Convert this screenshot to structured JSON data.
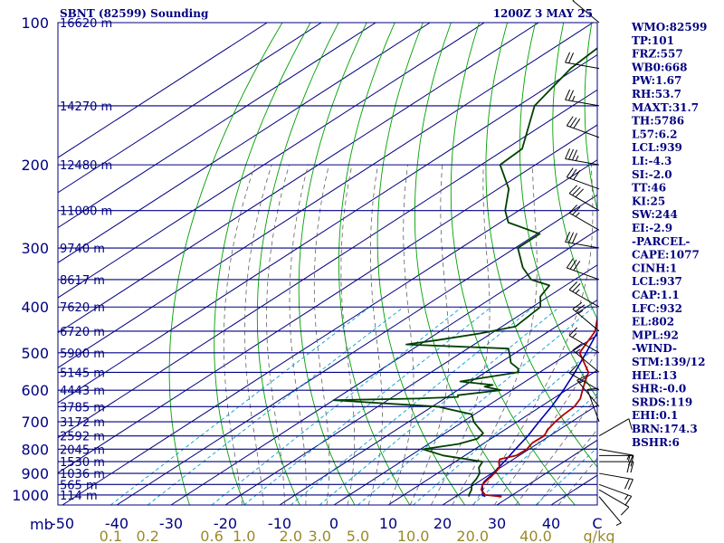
{
  "header": {
    "station": "SBNT (82599) Sounding",
    "time": "1200Z  3 MAY 25"
  },
  "chart_data": {
    "type": "skew-t",
    "title": "SBNT (82599) Sounding",
    "valid_time": "1200Z  3 MAY 25",
    "pressure_ticks": [
      "100",
      "200",
      "300",
      "400",
      "500",
      "600",
      "700",
      "800",
      "900",
      "1000"
    ],
    "pressure_unit": "mb",
    "temperature_ticks": [
      "-50",
      "-40",
      "-30",
      "-20",
      "-10",
      "0",
      "10",
      "20",
      "30",
      "40",
      "C"
    ],
    "mixing_ratio_ticks": [
      "0.1",
      "0.2",
      "0.6",
      "1.0",
      "2.0",
      "3.0",
      "5.0",
      "10.0",
      "20.0",
      "40.0",
      "g/kg"
    ],
    "height_levels": [
      {
        "p": 100,
        "label": "16620 m"
      },
      {
        "p": 150,
        "label": "14270 m"
      },
      {
        "p": 200,
        "label": "12480 m"
      },
      {
        "p": 250,
        "label": "11000 m"
      },
      {
        "p": 300,
        "label": "9740 m"
      },
      {
        "p": 350,
        "label": "8617 m"
      },
      {
        "p": 400,
        "label": "7620 m"
      },
      {
        "p": 450,
        "label": "6720 m"
      },
      {
        "p": 500,
        "label": "5900 m"
      },
      {
        "p": 550,
        "label": "5145 m"
      },
      {
        "p": 600,
        "label": "4443 m"
      },
      {
        "p": 650,
        "label": "3785 m"
      },
      {
        "p": 700,
        "label": "3172 m"
      },
      {
        "p": 750,
        "label": "2592 m"
      },
      {
        "p": 800,
        "label": "2045 m"
      },
      {
        "p": 850,
        "label": "1530 m"
      },
      {
        "p": 900,
        "label": "1036 m"
      },
      {
        "p": 950,
        "label": "565 m"
      },
      {
        "p": 1000,
        "label": "114 m"
      }
    ],
    "temperature_profile": [
      [
        1008,
        28.5
      ],
      [
        1000,
        25.0
      ],
      [
        975,
        22.8
      ],
      [
        950,
        21.5
      ],
      [
        925,
        21.0
      ],
      [
        900,
        20.5
      ],
      [
        875,
        19.8
      ],
      [
        850,
        18.0
      ],
      [
        840,
        17.5
      ],
      [
        825,
        19.5
      ],
      [
        800,
        19.6
      ],
      [
        775,
        18.8
      ],
      [
        750,
        19.0
      ],
      [
        725,
        17.8
      ],
      [
        700,
        17.0
      ],
      [
        675,
        16.5
      ],
      [
        650,
        16.2
      ],
      [
        625,
        15.0
      ],
      [
        600,
        13.0
      ],
      [
        575,
        11.0
      ],
      [
        550,
        9.0
      ],
      [
        525,
        5.5
      ],
      [
        500,
        1.8
      ],
      [
        480,
        0.5
      ],
      [
        460,
        -0.8
      ],
      [
        450,
        -1.5
      ],
      [
        425,
        -4.5
      ],
      [
        400,
        -7.0
      ],
      [
        375,
        -10.0
      ],
      [
        350,
        -13.0
      ],
      [
        325,
        -17.5
      ],
      [
        300,
        -23.0
      ],
      [
        275,
        -28.0
      ],
      [
        265,
        -30.5
      ],
      [
        250,
        -33.0
      ],
      [
        225,
        -37.5
      ],
      [
        200,
        -44.5
      ],
      [
        175,
        -52.5
      ],
      [
        150,
        -62.0
      ],
      [
        125,
        -69.5
      ],
      [
        112,
        -73.0
      ],
      [
        100,
        -73.0
      ]
    ],
    "dewpoint_profile": [
      [
        1008,
        22.5
      ],
      [
        1000,
        22.0
      ],
      [
        975,
        21.0
      ],
      [
        950,
        19.5
      ],
      [
        925,
        18.8
      ],
      [
        900,
        17.8
      ],
      [
        875,
        16.0
      ],
      [
        850,
        15.0
      ],
      [
        825,
        6.0
      ],
      [
        800,
        0.5
      ],
      [
        780,
        5.5
      ],
      [
        760,
        7.5
      ],
      [
        740,
        7.0
      ],
      [
        720,
        4.5
      ],
      [
        700,
        2.0
      ],
      [
        675,
        -0.5
      ],
      [
        650,
        -9.0
      ],
      [
        630,
        -30.0
      ],
      [
        625,
        -15.0
      ],
      [
        620,
        -8.0
      ],
      [
        615,
        -8.5
      ],
      [
        600,
        -2.0
      ],
      [
        590,
        -6.0
      ],
      [
        585,
        -5.0
      ],
      [
        575,
        -12.0
      ],
      [
        550,
        -4.0
      ],
      [
        540,
        -5.0
      ],
      [
        525,
        -8.0
      ],
      [
        505,
        -10.5
      ],
      [
        490,
        -12.5
      ],
      [
        480,
        -32.5
      ],
      [
        470,
        -28.0
      ],
      [
        455,
        -22.0
      ],
      [
        440,
        -17.5
      ],
      [
        400,
        -18.5
      ],
      [
        380,
        -21.5
      ],
      [
        360,
        -23.0
      ],
      [
        350,
        -28.0
      ],
      [
        330,
        -33.0
      ],
      [
        300,
        -39.5
      ],
      [
        280,
        -39.5
      ],
      [
        265,
        -48.5
      ],
      [
        250,
        -52.5
      ],
      [
        225,
        -58.0
      ],
      [
        200,
        -66.5
      ],
      [
        185,
        -67.0
      ],
      [
        150,
        -77.0
      ],
      [
        125,
        -81.0
      ],
      [
        112,
        -82.0
      ],
      [
        100,
        -82.0
      ]
    ],
    "parcel_profile": [
      [
        1008,
        25.5
      ],
      [
        1000,
        24.5
      ],
      [
        950,
        21.5
      ],
      [
        937,
        21.0
      ],
      [
        900,
        20.3
      ],
      [
        850,
        19.0
      ],
      [
        800,
        17.5
      ],
      [
        750,
        16.0
      ],
      [
        700,
        14.0
      ],
      [
        650,
        12.0
      ],
      [
        600,
        9.5
      ],
      [
        550,
        6.5
      ],
      [
        500,
        3.0
      ],
      [
        450,
        -1.0
      ],
      [
        400,
        -6.5
      ],
      [
        350,
        -13.0
      ],
      [
        300,
        -21.5
      ],
      [
        250,
        -31.5
      ],
      [
        200,
        -45.0
      ],
      [
        175,
        -53.5
      ],
      [
        150,
        -62.5
      ],
      [
        125,
        -73.0
      ],
      [
        112,
        -79.0
      ],
      [
        100,
        -84.0
      ]
    ],
    "wind_profile": [
      [
        1008,
        140,
        5
      ],
      [
        975,
        120,
        10
      ],
      [
        950,
        110,
        15
      ],
      [
        900,
        100,
        20
      ],
      [
        850,
        90,
        20
      ],
      [
        825,
        90,
        15
      ],
      [
        800,
        100,
        15
      ],
      [
        750,
        60,
        10
      ],
      [
        700,
        340,
        10
      ],
      [
        650,
        320,
        15
      ],
      [
        600,
        300,
        15
      ],
      [
        550,
        310,
        15
      ],
      [
        500,
        300,
        15
      ],
      [
        450,
        310,
        25
      ],
      [
        400,
        300,
        25
      ],
      [
        350,
        290,
        30
      ],
      [
        300,
        280,
        30
      ],
      [
        275,
        300,
        25
      ],
      [
        250,
        300,
        30
      ],
      [
        225,
        290,
        30
      ],
      [
        200,
        280,
        35
      ],
      [
        175,
        290,
        30
      ],
      [
        150,
        280,
        25
      ],
      [
        125,
        280,
        20
      ],
      [
        100,
        310,
        10
      ]
    ],
    "indices": [
      "WMO:82599",
      "TP:101",
      "FRZ:557",
      "WB0:668",
      "PW:1.67",
      "RH:53.7",
      "MAXT:31.7",
      "TH:5786",
      "L57:6.2",
      "LCL:939",
      "LI:-4.3",
      "SI:-2.0",
      "TT:46",
      "KI:25",
      "SW:244",
      "EI:-2.9",
      "-PARCEL-",
      "CAPE:1077",
      "CINH:1",
      "LCL:937",
      "CAP:1.1",
      "LFC:932",
      "EL:802",
      "MPL:92",
      "-WIND-",
      "STM:139/12",
      "HEL:13",
      "SHR:-0.0",
      "SRDS:119",
      "EHI:0.1",
      "BRN:174.3",
      "BSHR:6"
    ],
    "colors": {
      "temperature": "#b00000",
      "dewpoint": "#004000",
      "parcel": "#0000b0",
      "isobar": "#000080",
      "isotherm": "#000080",
      "dry_adiabat": "#00a000",
      "moist_adiabat": "#606060",
      "mixing_ratio": "#00a0d0",
      "text": "#000080",
      "mix_labels": "#9a8a2a"
    }
  }
}
